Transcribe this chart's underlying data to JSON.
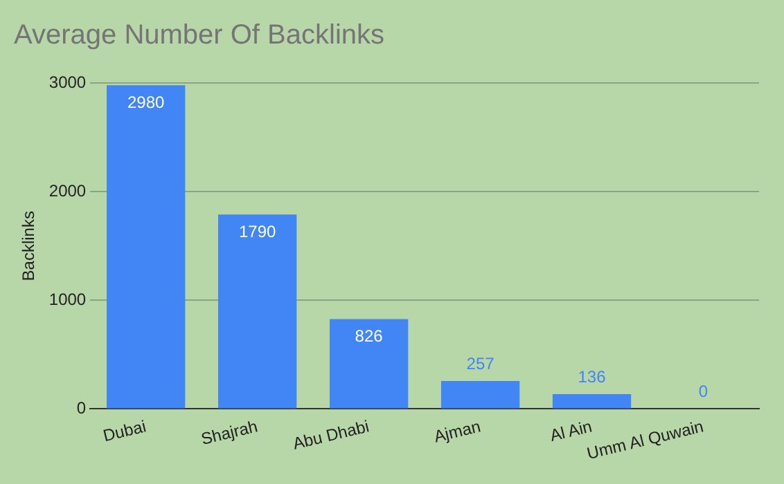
{
  "chart_data": {
    "type": "bar",
    "title": "Average Number Of Backlinks",
    "ylabel": "Backlinks",
    "categories": [
      "Dubai",
      "Shajrah",
      "Abu Dhabi",
      "Ajman",
      "Al Ain",
      "Umm Al Quwain"
    ],
    "values": [
      2980,
      1790,
      826,
      257,
      136,
      0
    ],
    "color": "#4285f4",
    "ylim": [
      0,
      3000
    ],
    "yticks": [
      0,
      1000,
      2000,
      3000
    ],
    "grid": "y",
    "data_labels": true,
    "legend": false
  }
}
